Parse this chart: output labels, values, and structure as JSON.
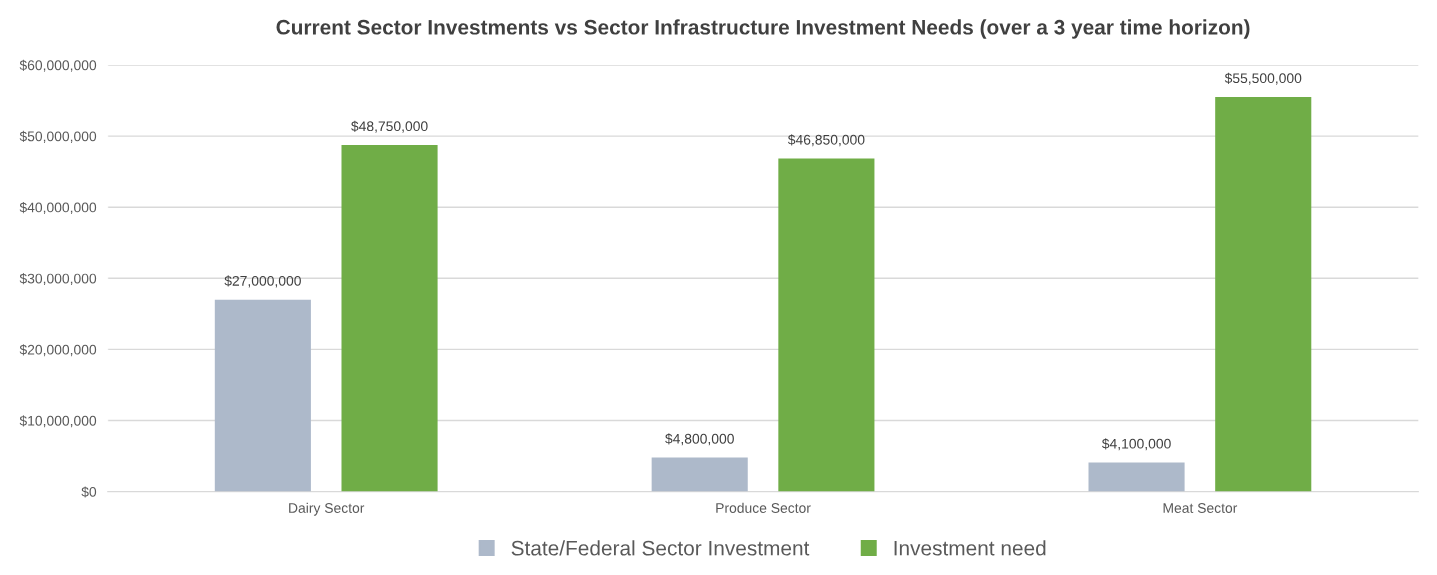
{
  "chart_data": {
    "type": "bar",
    "title": "Current Sector Investments vs Sector Infrastructure Investment Needs (over a 3 year time horizon)",
    "categories": [
      "Dairy Sector",
      "Produce Sector",
      "Meat Sector"
    ],
    "series": [
      {
        "name": "State/Federal Sector Investment",
        "color": "#adb9ca",
        "values": [
          27000000,
          4800000,
          4100000
        ],
        "value_labels": [
          "$27,000,000",
          "$4,800,000",
          "$4,100,000"
        ]
      },
      {
        "name": "Investment need",
        "color": "#70ad47",
        "values": [
          48750000,
          46850000,
          55500000
        ],
        "value_labels": [
          "$48,750,000",
          "$46,850,000",
          "$55,500,000"
        ]
      }
    ],
    "ylim": [
      0,
      60000000
    ],
    "yticks": [
      {
        "value": 0,
        "label": "$0"
      },
      {
        "value": 10000000,
        "label": "$10,000,000"
      },
      {
        "value": 20000000,
        "label": "$20,000,000"
      },
      {
        "value": 30000000,
        "label": "$30,000,000"
      },
      {
        "value": 40000000,
        "label": "$40,000,000"
      },
      {
        "value": 50000000,
        "label": "$50,000,000"
      },
      {
        "value": 60000000,
        "label": "$60,000,000"
      }
    ],
    "grid": "y",
    "legend": "bottom"
  }
}
